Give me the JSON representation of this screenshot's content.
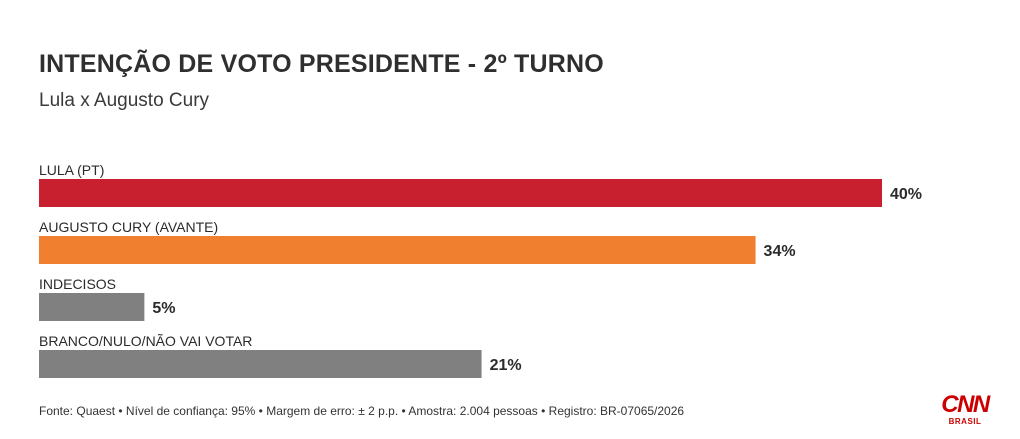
{
  "title": "INTENÇÃO DE VOTO PRESIDENTE - 2º TURNO",
  "subtitle": "Lula x Augusto Cury",
  "footer": "Fonte: Quaest • Nível de confiança: 95% • Margem de erro: ± 2 p.p. • Amostra: 2.004 pessoas • Registro: BR-07065/2026",
  "logo": {
    "mark": "CNN",
    "sub": "BRASIL",
    "color": "#cc0000"
  },
  "chart_data": {
    "type": "bar",
    "orientation": "horizontal",
    "categories": [
      "LULA (PT)",
      "AUGUSTO CURY (AVANTE)",
      "INDECISOS",
      "BRANCO/NULO/NÃO VAI VOTAR"
    ],
    "values": [
      40,
      34,
      5,
      21
    ],
    "value_labels": [
      "40%",
      "34%",
      "5%",
      "21%"
    ],
    "colors": [
      "#c8202e",
      "#f07f2f",
      "#808080",
      "#808080"
    ],
    "unit": "%",
    "xlim": [
      0,
      40
    ],
    "grid": false,
    "legend": "none"
  }
}
